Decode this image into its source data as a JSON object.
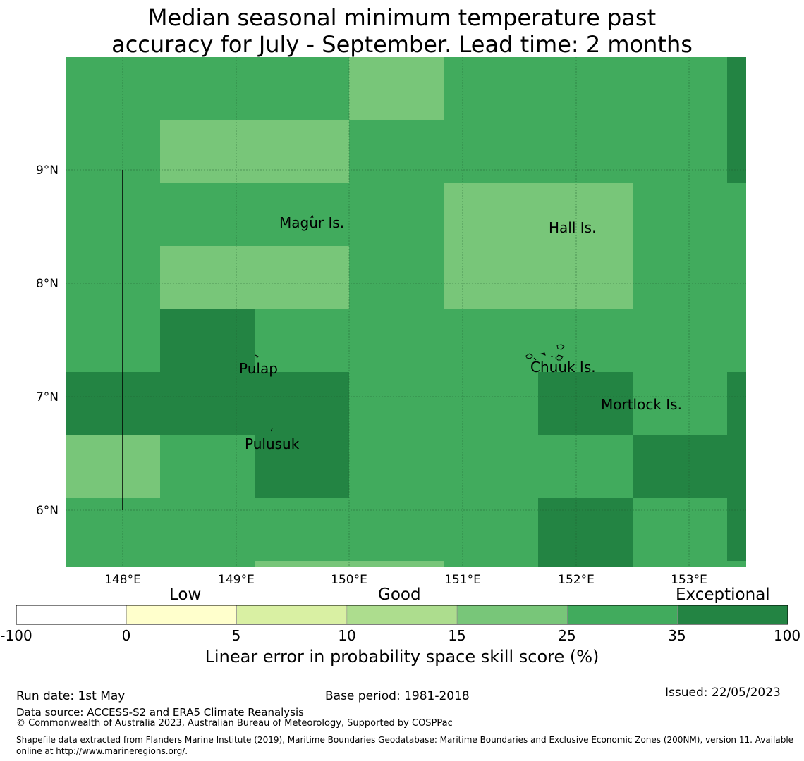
{
  "title": {
    "line1": "Median seasonal minimum temperature past",
    "line2": "accuracy for July - September. Lead time: 2 months"
  },
  "map": {
    "lon_range": [
      147.5,
      153.5
    ],
    "lat_range": [
      5.5,
      10.0
    ],
    "x_ticks": [
      "148°E",
      "149°E",
      "150°E",
      "151°E",
      "152°E",
      "153°E"
    ],
    "y_ticks": [
      "9°N",
      "8°N",
      "7°N",
      "6°N"
    ],
    "places": [
      {
        "name": "Magur Is.",
        "lon": 149.55,
        "lat": 8.55
      },
      {
        "name": "Hall Is.",
        "lon": 151.85,
        "lat": 8.5
      },
      {
        "name": "Pulap",
        "lon": 149.2,
        "lat": 7.25
      },
      {
        "name": "Chuuk Is.",
        "lon": 151.75,
        "lat": 7.3
      },
      {
        "name": "Mortlock Is.",
        "lon": 152.6,
        "lat": 6.95
      },
      {
        "name": "Pulusuk",
        "lon": 149.33,
        "lat": 6.6
      }
    ]
  },
  "colorbar": {
    "categories": [
      {
        "label": "Low",
        "pos": 0.22
      },
      {
        "label": "Good",
        "pos": 0.5
      },
      {
        "label": "Exceptional",
        "pos": 0.93
      }
    ],
    "ticks": [
      "-100",
      "0",
      "5",
      "10",
      "15",
      "25",
      "35",
      "100"
    ],
    "colors": [
      "#ffffff",
      "#ffffcc",
      "#d9f0a3",
      "#addd8e",
      "#78c679",
      "#41ab5d",
      "#238443"
    ],
    "label": "Linear error in probability space skill score (%)"
  },
  "footer": {
    "run_date": "Run date: 1st May",
    "base_period": "Base period: 1981-2018",
    "issued": "Issued: 22/05/2023",
    "data_source": "Data source: ACCESS-S2 and ERA5 Climate Reanalysis",
    "copyright": "© Commonwealth of Australia 2023, Australian Bureau of Meteorology, Supported by COSPPac",
    "shapefile": "Shapefile data extracted from Flanders Marine Institute (2019), Maritime Boundaries Geodatabase: Maritime Boundaries and Exclusive Economic Zones (200NM), version 11. Available online at http://www.marineregions.org/."
  }
}
